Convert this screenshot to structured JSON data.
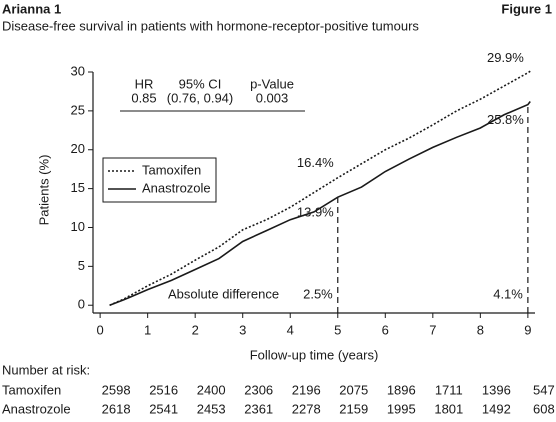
{
  "chart_data": {
    "type": "line",
    "title": "Arianna 1",
    "figure_label": "Figure 1",
    "subtitle": "Disease-free survival in patients with hormone-receptor-positive tumours",
    "x_label": "Follow-up time (years)",
    "y_label": "Patients (%)",
    "xlim": [
      -0.15,
      9.15
    ],
    "ylim": [
      -1,
      30
    ],
    "xticks": [
      0,
      1,
      2,
      3,
      4,
      5,
      6,
      7,
      8,
      9
    ],
    "yticks": [
      0,
      5,
      10,
      15,
      20,
      25,
      30
    ],
    "grid": false,
    "legend_position": "left",
    "x": [
      0.2,
      0.5,
      1,
      1.5,
      2,
      2.5,
      3,
      3.5,
      4,
      4.5,
      5,
      5.5,
      6,
      6.5,
      7,
      7.5,
      8,
      8.5,
      9,
      9.05
    ],
    "series": [
      {
        "name": "Tamoxifen",
        "color": "#1a1a1a",
        "style": "dotted",
        "values": [
          0,
          0.8,
          2.5,
          4,
          5.8,
          7.5,
          9.7,
          11,
          12.6,
          14.5,
          16.4,
          18.2,
          20,
          21.5,
          23.2,
          25,
          26.5,
          28.2,
          29.9,
          30.1
        ],
        "value_labels": [
          null,
          null,
          null,
          null,
          null,
          null,
          null,
          null,
          null,
          null,
          "16.4%",
          null,
          null,
          null,
          null,
          null,
          null,
          null,
          "29.9%",
          null
        ]
      },
      {
        "name": "Anastrozole",
        "color": "#1a1a1a",
        "style": "solid",
        "values": [
          0,
          0.7,
          2,
          3.2,
          4.6,
          6,
          8.2,
          9.6,
          11,
          12,
          13.9,
          15.2,
          17.2,
          18.8,
          20.3,
          21.6,
          22.8,
          24.5,
          25.8,
          26.2
        ],
        "value_labels": [
          null,
          null,
          null,
          null,
          null,
          null,
          null,
          null,
          null,
          null,
          "13.9%",
          null,
          null,
          null,
          null,
          null,
          null,
          null,
          "25.8%",
          null
        ]
      }
    ],
    "difference_title": "Absolute difference",
    "differences": [
      {
        "x": 5,
        "value": 2.5,
        "label": "2.5%"
      },
      {
        "x": 9,
        "value": 4.1,
        "label": "4.1%"
      }
    ],
    "stats_table": {
      "headers": [
        "HR",
        "95% CI",
        "p-Value"
      ],
      "values": [
        0.85,
        "(0.76, 0.94)",
        0.003
      ]
    },
    "risk_table": {
      "title": "Number at risk:",
      "rows": [
        {
          "name": "Tamoxifen",
          "counts": [
            2598,
            2516,
            2400,
            2306,
            2196,
            2075,
            1896,
            1711,
            1396,
            547
          ]
        },
        {
          "name": "Anastrozole",
          "counts": [
            2618,
            2541,
            2453,
            2361,
            2278,
            2159,
            1995,
            1801,
            1492,
            608
          ]
        }
      ]
    }
  }
}
